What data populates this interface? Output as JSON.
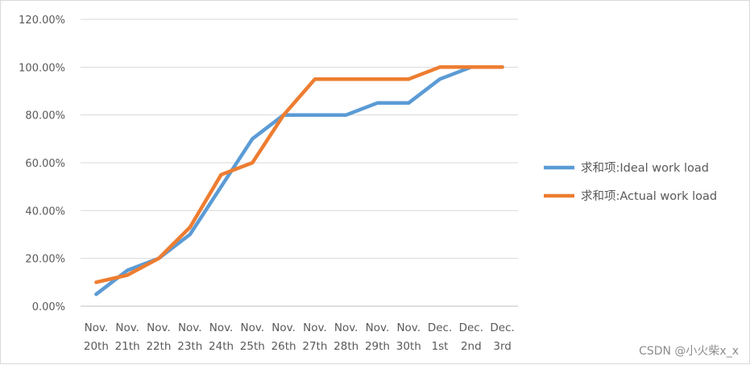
{
  "chart_data": {
    "type": "line",
    "categories": [
      [
        "Nov.",
        "20th"
      ],
      [
        "Nov.",
        "21th"
      ],
      [
        "Nov.",
        "22th"
      ],
      [
        "Nov.",
        "23th"
      ],
      [
        "Nov.",
        "24th"
      ],
      [
        "Nov.",
        "25th"
      ],
      [
        "Nov.",
        "26th"
      ],
      [
        "Nov.",
        "27th"
      ],
      [
        "Nov.",
        "28th"
      ],
      [
        "Nov.",
        "29th"
      ],
      [
        "Nov.",
        "30th"
      ],
      [
        "Dec.",
        "1st"
      ],
      [
        "Dec.",
        "2nd"
      ],
      [
        "Dec.",
        "3rd"
      ]
    ],
    "y_ticks": [
      "0.00%",
      "20.00%",
      "40.00%",
      "60.00%",
      "80.00%",
      "100.00%",
      "120.00%"
    ],
    "ylim": [
      0,
      1.2
    ],
    "grid": true,
    "legend_position": "right",
    "series": [
      {
        "name": "求和项:Ideal work load",
        "color": "#5b9bd5",
        "values": [
          0.05,
          0.15,
          0.2,
          0.3,
          0.5,
          0.7,
          0.8,
          0.8,
          0.8,
          0.85,
          0.85,
          0.95,
          1.0,
          1.0
        ]
      },
      {
        "name": "求和项:Actual work load",
        "color": "#ed7d31",
        "values": [
          0.1,
          0.13,
          0.2,
          0.33,
          0.55,
          0.6,
          0.8,
          0.95,
          0.95,
          0.95,
          0.95,
          1.0,
          1.0,
          1.0
        ]
      }
    ]
  },
  "watermark": "CSDN @小火柴x_x"
}
